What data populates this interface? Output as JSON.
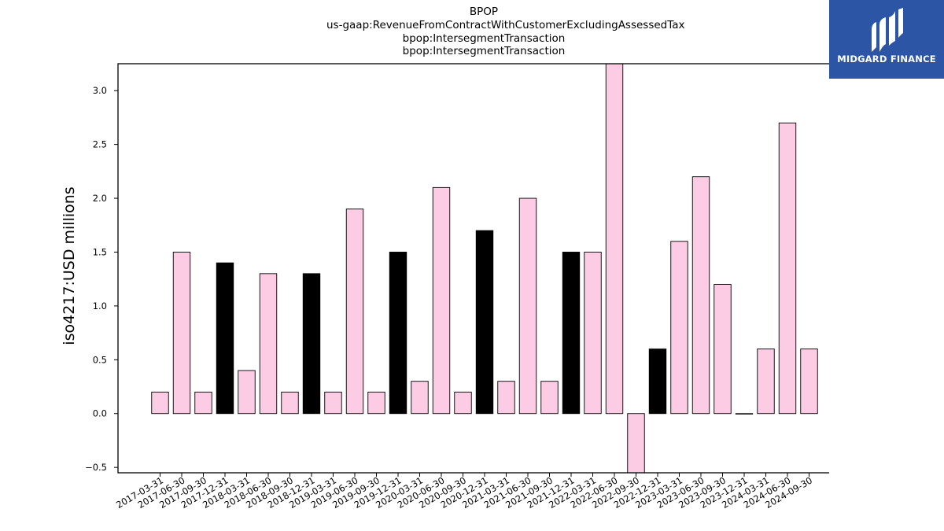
{
  "title_lines": [
    "BPOP",
    "us-gaap:RevenueFromContractWithCustomerExcludingAssessedTax",
    "bpop:IntersegmentTransaction",
    "bpop:IntersegmentTransaction"
  ],
  "logo": {
    "text": "MIDGARD FINANCE",
    "bg_color": "#2c56a5"
  },
  "chart_data": {
    "type": "bar",
    "title": "BPOP",
    "ylabel": "iso4217:USD  millions",
    "xlabel": "",
    "ylim": [
      -0.55,
      3.25
    ],
    "yticks": [
      -0.5,
      0.0,
      0.5,
      1.0,
      1.5,
      2.0,
      2.5,
      3.0
    ],
    "ytick_labels": [
      "−0.5",
      "0.0",
      "0.5",
      "1.0",
      "1.5",
      "2.0",
      "2.5",
      "3.0"
    ],
    "grid": false,
    "legend": "none",
    "categories": [
      "2017-03-31",
      "2017-06-30",
      "2017-09-30",
      "2017-12-31",
      "2018-03-31",
      "2018-06-30",
      "2018-09-30",
      "2018-12-31",
      "2019-03-31",
      "2019-06-30",
      "2019-09-30",
      "2019-12-31",
      "2020-03-31",
      "2020-06-30",
      "2020-09-30",
      "2020-12-31",
      "2021-03-31",
      "2021-06-30",
      "2021-09-30",
      "2021-12-31",
      "2022-03-31",
      "2022-06-30",
      "2022-09-30",
      "2022-12-31",
      "2023-03-31",
      "2023-06-30",
      "2023-09-30",
      "2023-12-31",
      "2024-03-31",
      "2024-06-30",
      "2024-09-30"
    ],
    "values": [
      0.2,
      1.5,
      0.2,
      1.4,
      0.4,
      1.3,
      0.2,
      1.3,
      0.2,
      1.9,
      0.2,
      1.5,
      0.3,
      2.1,
      0.2,
      1.7,
      0.3,
      2.0,
      0.3,
      1.5,
      1.5,
      3.3,
      -0.6,
      0.6,
      1.6,
      2.2,
      1.2,
      0.0,
      0.6,
      2.7,
      0.6
    ],
    "bar_colors": [
      "pink",
      "pink",
      "pink",
      "black",
      "pink",
      "pink",
      "pink",
      "black",
      "pink",
      "pink",
      "pink",
      "black",
      "pink",
      "pink",
      "pink",
      "black",
      "pink",
      "pink",
      "pink",
      "black",
      "pink",
      "pink",
      "pink",
      "black",
      "pink",
      "pink",
      "pink",
      "pink",
      "pink",
      "pink",
      "pink"
    ],
    "colors": {
      "pink": "#fccbe4",
      "black": "#000000",
      "edge": "#000000"
    }
  }
}
